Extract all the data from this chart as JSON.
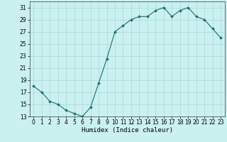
{
  "x": [
    0,
    1,
    2,
    3,
    4,
    5,
    6,
    7,
    8,
    9,
    10,
    11,
    12,
    13,
    14,
    15,
    16,
    17,
    18,
    19,
    20,
    21,
    22,
    23
  ],
  "y": [
    18,
    17,
    15.5,
    15,
    14,
    13.5,
    13,
    14.5,
    18.5,
    22.5,
    27,
    28,
    29,
    29.5,
    29.5,
    30.5,
    31,
    29.5,
    30.5,
    31,
    29.5,
    29,
    27.5,
    26
  ],
  "line_color": "#1a7070",
  "marker": "D",
  "marker_size": 2.0,
  "bg_color": "#caf0f0",
  "grid_color": "#a8d8d8",
  "xlabel": "Humidex (Indice chaleur)",
  "ylim": [
    13,
    32
  ],
  "xlim": [
    -0.5,
    23.5
  ],
  "yticks": [
    13,
    15,
    17,
    19,
    21,
    23,
    25,
    27,
    29,
    31
  ],
  "xtick_labels": [
    "0",
    "1",
    "2",
    "3",
    "4",
    "5",
    "6",
    "7",
    "8",
    "9",
    "10",
    "11",
    "12",
    "13",
    "14",
    "15",
    "16",
    "17",
    "18",
    "19",
    "20",
    "21",
    "22",
    "23"
  ],
  "xlabel_fontsize": 6.5,
  "tick_fontsize": 5.5,
  "linewidth": 0.8
}
